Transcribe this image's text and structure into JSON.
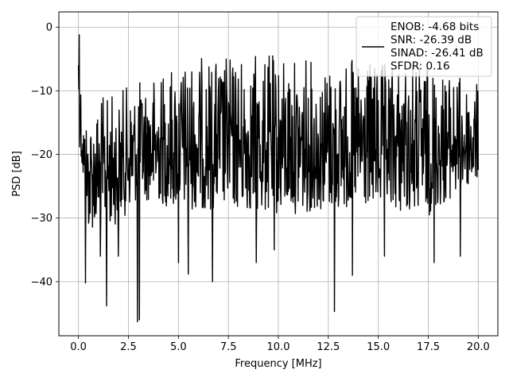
{
  "chart_data": {
    "type": "line",
    "xlabel": "Frequency [MHz]",
    "ylabel": "PSD [dB]",
    "xlim": [
      -0.98,
      20.98
    ],
    "ylim": [
      -48.5,
      2.4
    ],
    "x_ticks": [
      0.0,
      2.5,
      5.0,
      7.5,
      10.0,
      12.5,
      15.0,
      17.5,
      20.0
    ],
    "x_tick_labels": [
      "0.0",
      "2.5",
      "5.0",
      "7.5",
      "10.0",
      "12.5",
      "15.0",
      "17.5",
      "20.0"
    ],
    "y_ticks": [
      0,
      -10,
      -20,
      -30,
      -40
    ],
    "y_tick_labels": [
      "0",
      "−10",
      "−20",
      "−30",
      "−40"
    ],
    "grid": true,
    "legend_position": "top-right",
    "line_color": "#000000",
    "series": [
      {
        "name": "ENOB: -4.68 bits\nSNR: -26.39 dB\nSINAD: -26.41 dB\nSFDR: 0.16",
        "legend_lines": [
          "ENOB: -4.68 bits",
          "SNR: -26.39 dB",
          "SINAD: -26.41 dB",
          "SFDR: 0.16"
        ],
        "x_range": [
          0.0,
          20.0
        ],
        "n_points": 1024,
        "upper_envelope": [
          [
            0.0,
            -6
          ],
          [
            0.05,
            -1.2
          ],
          [
            0.2,
            -14
          ],
          [
            1.0,
            -11
          ],
          [
            2.5,
            -9
          ],
          [
            4.0,
            -7
          ],
          [
            5.0,
            -5
          ],
          [
            7.5,
            -4
          ],
          [
            10.0,
            -4
          ],
          [
            12.5,
            -5
          ],
          [
            15.0,
            -5
          ],
          [
            17.5,
            -5
          ],
          [
            20.0,
            -9
          ]
        ],
        "lower_envelope": [
          [
            0.0,
            -18
          ],
          [
            0.5,
            -33
          ],
          [
            2.0,
            -32
          ],
          [
            3.0,
            -28
          ],
          [
            5.0,
            -30
          ],
          [
            7.5,
            -30
          ],
          [
            10.0,
            -31
          ],
          [
            12.5,
            -30
          ],
          [
            15.0,
            -30
          ],
          [
            17.5,
            -31
          ],
          [
            20.0,
            -25
          ]
        ],
        "deep_nulls": [
          [
            0.35,
            -40.2
          ],
          [
            1.1,
            -36
          ],
          [
            1.4,
            -43.8
          ],
          [
            2.0,
            -36
          ],
          [
            2.95,
            -46.3
          ],
          [
            3.05,
            -46
          ],
          [
            5.0,
            -37
          ],
          [
            5.5,
            -38.8
          ],
          [
            6.7,
            -40
          ],
          [
            8.9,
            -37
          ],
          [
            9.8,
            -35
          ],
          [
            12.8,
            -44.7
          ],
          [
            13.7,
            -39
          ],
          [
            15.3,
            -36
          ],
          [
            17.8,
            -37
          ],
          [
            19.1,
            -36
          ]
        ]
      }
    ]
  }
}
